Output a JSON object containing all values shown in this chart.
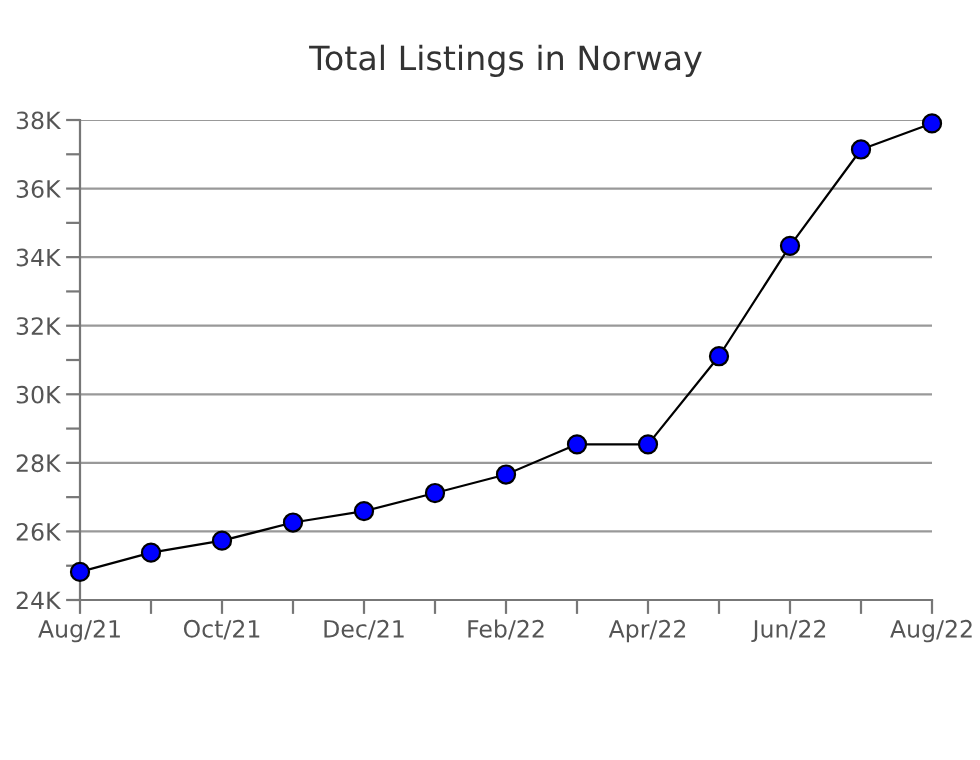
{
  "chart_data": {
    "type": "line",
    "title": "Total Listings in Norway",
    "categories": [
      "Aug/21",
      null,
      "Oct/21",
      null,
      "Dec/21",
      null,
      "Feb/22",
      null,
      "Apr/22",
      null,
      "Jun/22",
      null,
      "Aug/22"
    ],
    "series": [
      {
        "color": "#0000ff",
        "values": [
          24820,
          25380,
          25730,
          26260,
          26590,
          27120,
          27660,
          28540,
          28540,
          31110,
          34330,
          37140,
          37900
        ]
      }
    ],
    "ylim": [
      24000,
      38000
    ],
    "yticks": [
      {
        "value": 24000,
        "label": "24K"
      },
      {
        "value": 25000,
        "label": null
      },
      {
        "value": 26000,
        "label": "26K"
      },
      {
        "value": 27000,
        "label": null
      },
      {
        "value": 28000,
        "label": "28K"
      },
      {
        "value": 29000,
        "label": null
      },
      {
        "value": 30000,
        "label": "30K"
      },
      {
        "value": 31000,
        "label": null
      },
      {
        "value": 32000,
        "label": "32K"
      },
      {
        "value": 33000,
        "label": null
      },
      {
        "value": 34000,
        "label": "34K"
      },
      {
        "value": 35000,
        "label": null
      },
      {
        "value": 36000,
        "label": "36K"
      },
      {
        "value": 37000,
        "label": null
      },
      {
        "value": 38000,
        "label": "38K"
      }
    ],
    "grid": "y",
    "marker": "circle",
    "line_style": "solid",
    "legend": false
  }
}
